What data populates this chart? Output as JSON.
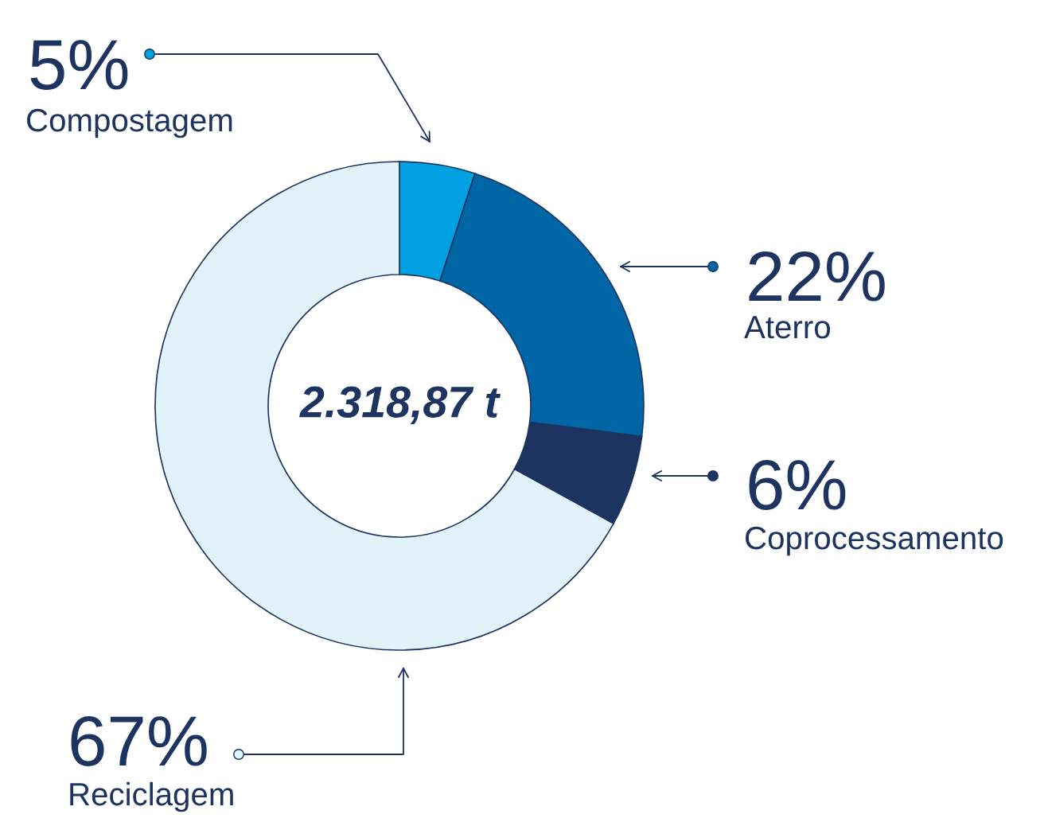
{
  "chart_data": {
    "type": "donut",
    "categories": [
      "Compostagem",
      "Aterro",
      "Coprocessamento",
      "Reciclagem"
    ],
    "values": [
      5,
      22,
      6,
      67
    ],
    "colors": [
      "#00a0e3",
      "#0065a4",
      "#1d3461",
      "#e1f2fa"
    ],
    "value_labels": [
      "5%",
      "22%",
      "6%",
      "67%"
    ],
    "annotations": [
      "2.318,87 t"
    ]
  }
}
